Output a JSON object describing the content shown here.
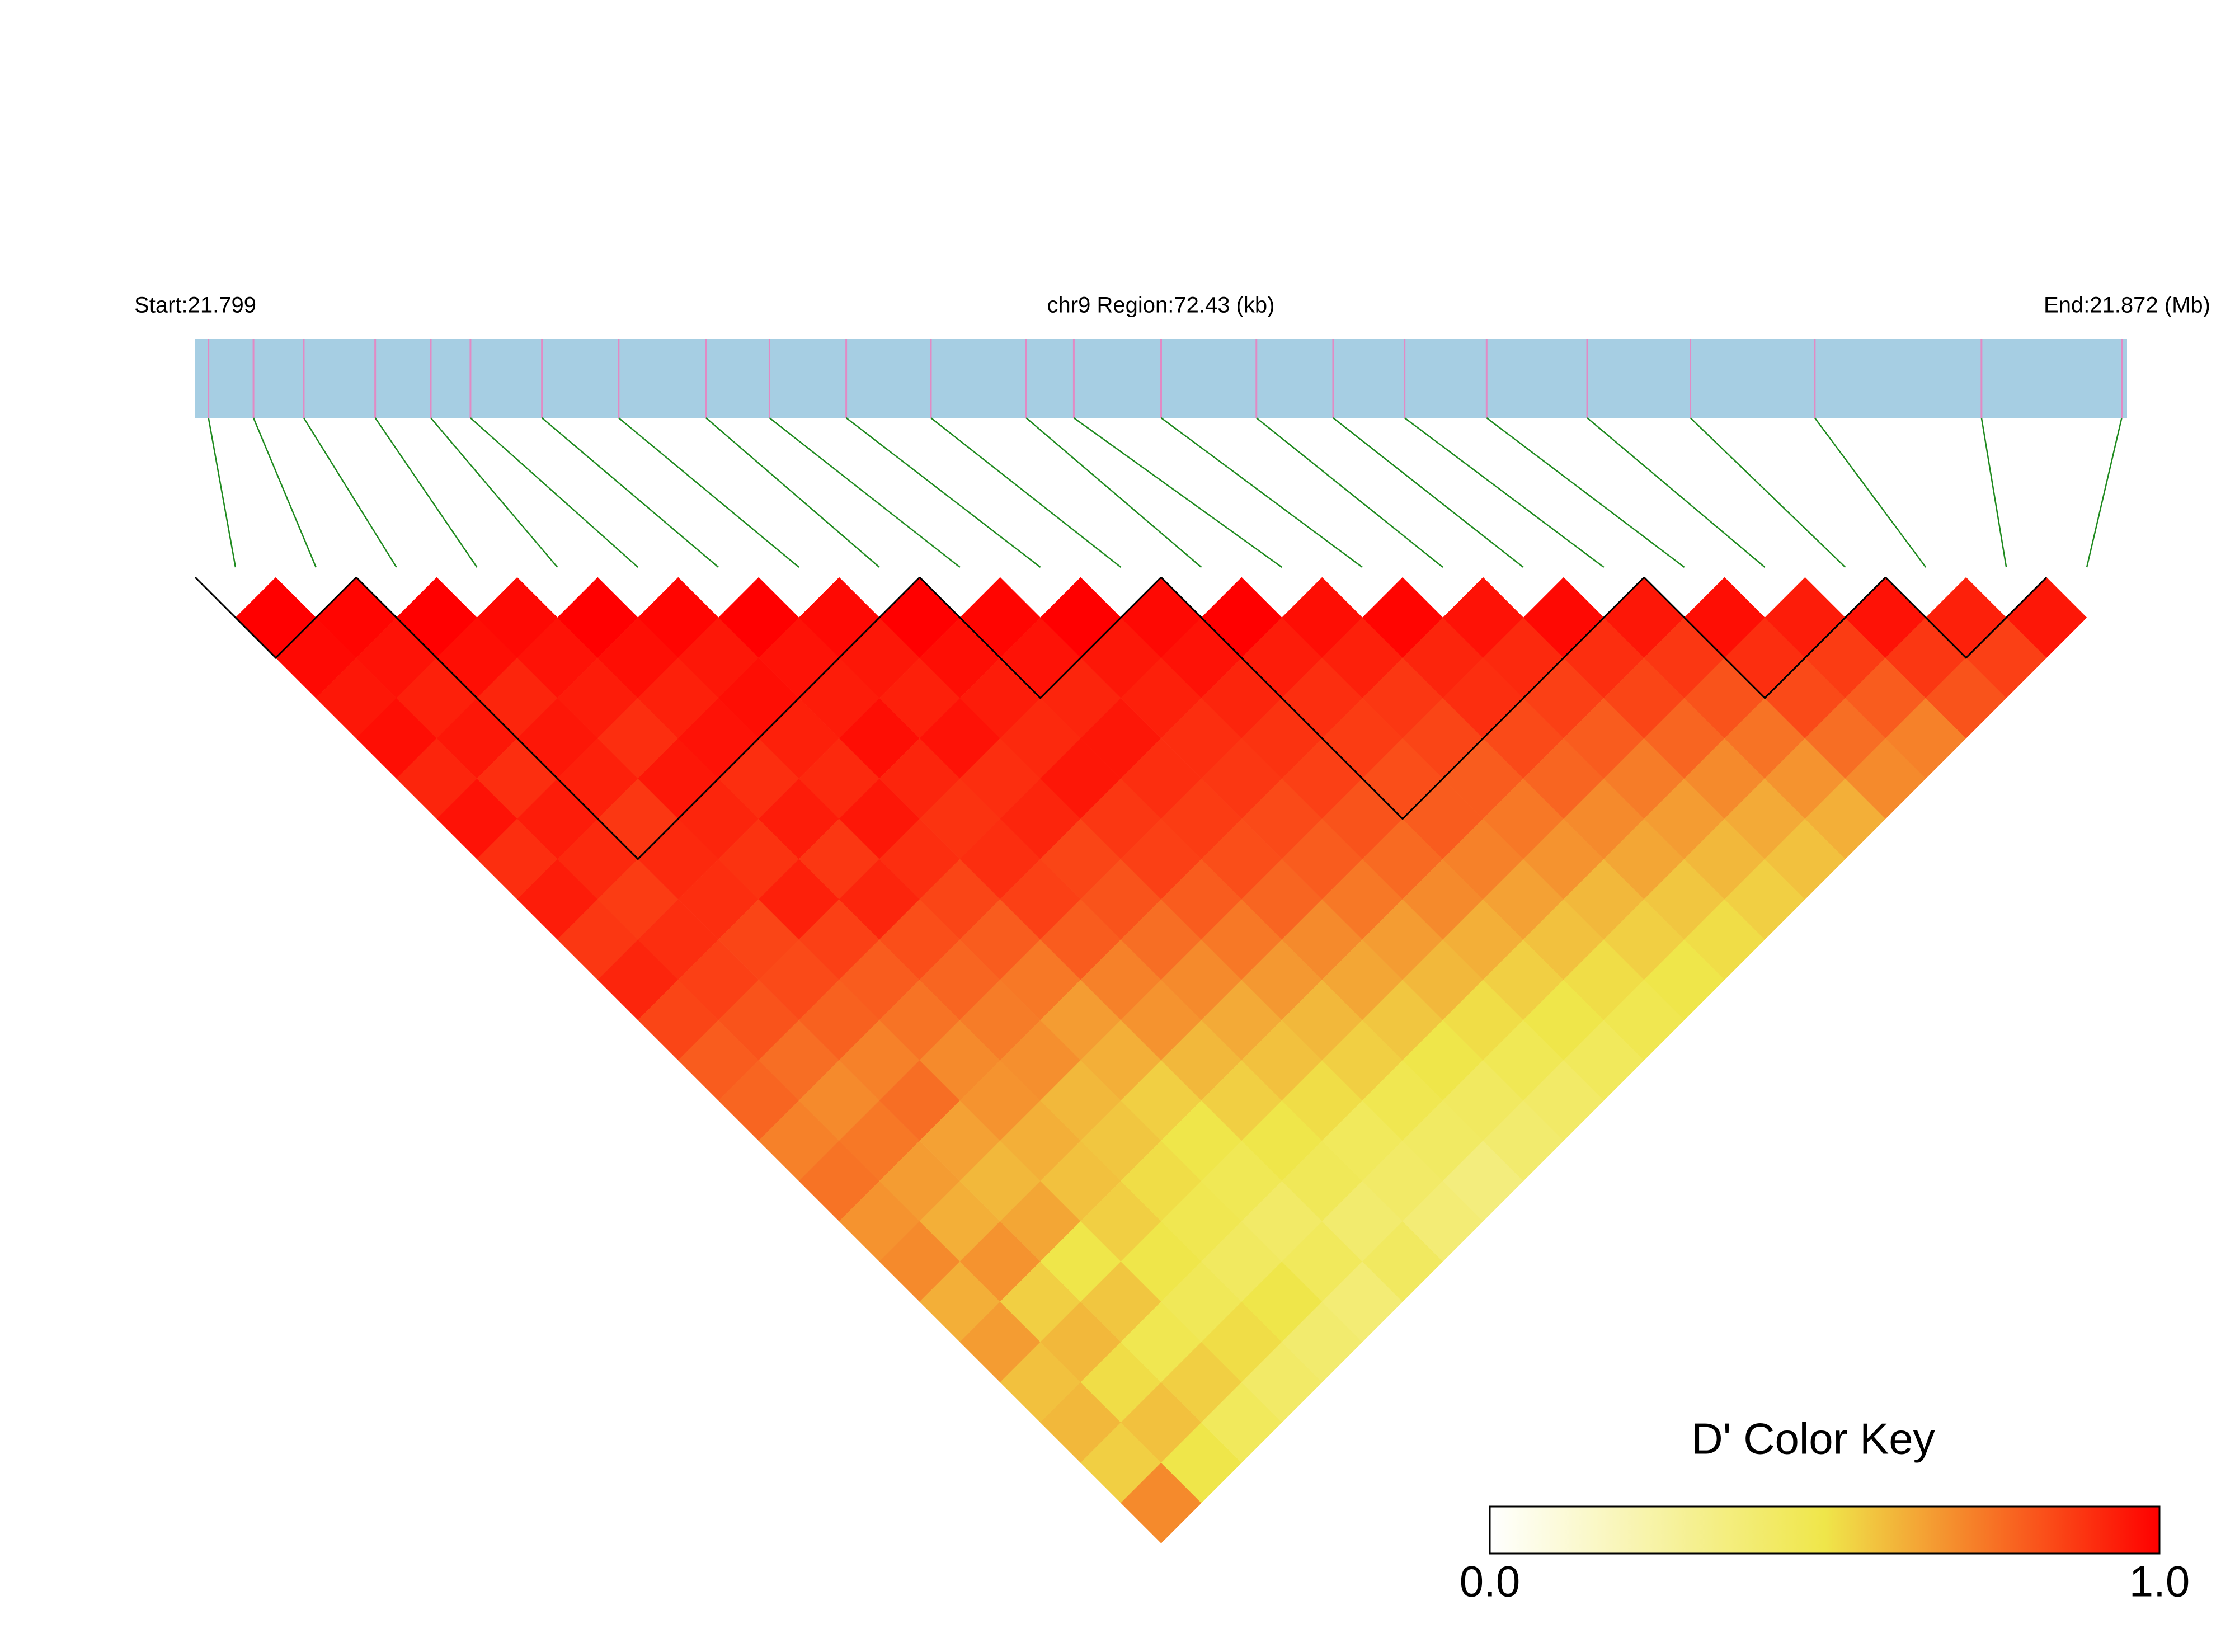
{
  "chart_data": {
    "type": "ld_heatmap",
    "start_label": "Start:21.799",
    "title": "chr9 Region:72.43 (kb)",
    "end_label": "End:21.872 (Mb)",
    "xlim": [
      21.799,
      21.872
    ],
    "positions": [
      21.7995,
      21.8012,
      21.8031,
      21.8058,
      21.8079,
      21.8094,
      21.8121,
      21.815,
      21.8183,
      21.8207,
      21.8236,
      21.8268,
      21.8304,
      21.8322,
      21.8355,
      21.8391,
      21.842,
      21.8447,
      21.8478,
      21.8516,
      21.8555,
      21.8602,
      21.8665,
      21.8718
    ],
    "track_color": "#a6cee3",
    "snp_color": "#e28ac4",
    "link_color": "#1f8a1f",
    "dprime": [
      [
        1,
        0.98,
        0.95,
        0.97,
        0.92,
        0.96,
        0.9,
        0.94,
        0.88,
        0.92,
        0.85,
        0.8,
        0.78,
        0.72,
        0.75,
        0.68,
        0.7,
        0.62,
        0.66,
        0.58,
        0.6,
        0.55,
        0.7
      ],
      [
        0.99,
        0.96,
        0.93,
        0.95,
        0.9,
        0.94,
        0.91,
        0.87,
        0.9,
        0.86,
        0.82,
        0.76,
        0.7,
        0.74,
        0.66,
        0.62,
        0.68,
        0.55,
        0.6,
        0.52,
        0.58,
        0.5
      ],
      [
        1,
        0.97,
        0.92,
        0.95,
        0.93,
        0.88,
        0.91,
        0.9,
        0.85,
        0.84,
        0.79,
        0.72,
        0.76,
        0.65,
        0.6,
        0.64,
        0.5,
        0.57,
        0.48,
        0.55,
        0.45
      ],
      [
        0.98,
        0.96,
        0.94,
        0.9,
        0.95,
        0.92,
        0.89,
        0.93,
        0.86,
        0.8,
        0.75,
        0.7,
        0.68,
        0.62,
        0.58,
        0.55,
        0.5,
        0.46,
        0.52,
        0.42
      ],
      [
        1,
        0.97,
        0.93,
        0.96,
        0.9,
        0.94,
        0.88,
        0.92,
        0.83,
        0.78,
        0.73,
        0.69,
        0.6,
        0.57,
        0.52,
        0.48,
        0.44,
        0.5,
        0.4
      ],
      [
        0.99,
        0.95,
        0.97,
        0.93,
        0.91,
        0.95,
        0.9,
        0.85,
        0.8,
        0.74,
        0.66,
        0.62,
        0.55,
        0.5,
        0.47,
        0.42,
        0.45,
        0.38
      ],
      [
        1,
        0.96,
        0.94,
        0.97,
        0.92,
        0.89,
        0.9,
        0.86,
        0.8,
        0.72,
        0.68,
        0.6,
        0.55,
        0.5,
        0.46,
        0.4,
        0.44
      ],
      [
        0.98,
        0.95,
        0.93,
        0.96,
        0.9,
        0.92,
        0.85,
        0.82,
        0.76,
        0.7,
        0.63,
        0.58,
        0.52,
        0.45,
        0.42,
        0.38
      ],
      [
        1,
        0.97,
        0.94,
        0.91,
        0.95,
        0.88,
        0.86,
        0.8,
        0.74,
        0.67,
        0.6,
        0.55,
        0.48,
        0.43,
        0.36
      ],
      [
        0.99,
        0.96,
        0.92,
        0.95,
        0.9,
        0.87,
        0.83,
        0.78,
        0.7,
        0.64,
        0.57,
        0.5,
        0.44,
        0.4
      ],
      [
        1,
        0.95,
        0.93,
        0.9,
        0.88,
        0.84,
        0.8,
        0.74,
        0.66,
        0.6,
        0.52,
        0.47,
        0.42
      ],
      [
        0.98,
        0.96,
        0.92,
        0.89,
        0.86,
        0.82,
        0.77,
        0.7,
        0.62,
        0.55,
        0.5,
        0.45
      ],
      [
        1,
        0.94,
        0.9,
        0.87,
        0.83,
        0.8,
        0.72,
        0.65,
        0.58,
        0.52,
        0.48
      ],
      [
        0.97,
        0.93,
        0.88,
        0.85,
        0.8,
        0.74,
        0.68,
        0.6,
        0.55,
        0.5
      ],
      [
        0.99,
        0.92,
        0.9,
        0.84,
        0.78,
        0.7,
        0.64,
        0.57,
        0.52
      ],
      [
        0.96,
        0.91,
        0.86,
        0.8,
        0.73,
        0.66,
        0.6,
        0.55
      ],
      [
        0.98,
        0.9,
        0.85,
        0.78,
        0.7,
        0.63,
        0.58
      ],
      [
        0.95,
        0.88,
        0.82,
        0.75,
        0.68,
        0.62
      ],
      [
        0.97,
        0.9,
        0.84,
        0.76,
        0.7
      ],
      [
        0.94,
        0.87,
        0.8,
        0.72
      ],
      [
        0.96,
        0.88,
        0.82
      ],
      [
        0.93,
        0.86
      ],
      [
        0.95
      ]
    ],
    "ld_blocks": [
      [
        0,
        1
      ],
      [
        2,
        8
      ],
      [
        9,
        11
      ],
      [
        12,
        17
      ],
      [
        18,
        20
      ],
      [
        21,
        22
      ]
    ],
    "colorbar": {
      "title": "D' Color Key",
      "clim": [
        0,
        1
      ],
      "ticks": [
        {
          "value": 0,
          "label": "0.0"
        },
        {
          "value": 1,
          "label": "1.0"
        }
      ],
      "colors": [
        "#ffffff",
        "#efe64a",
        "#ff0000"
      ]
    }
  }
}
